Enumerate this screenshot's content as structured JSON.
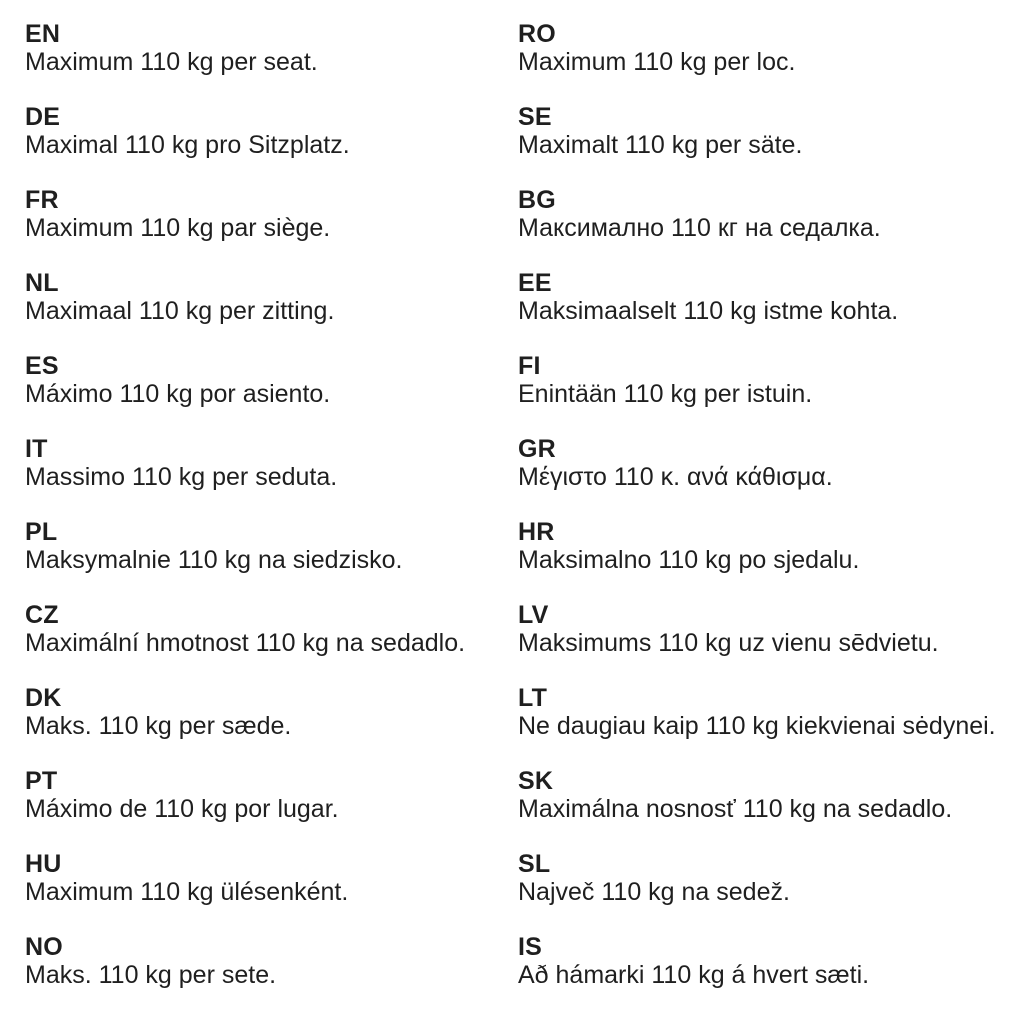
{
  "document": {
    "background_color": "#ffffff",
    "text_color": "#1f1f1f",
    "entries_left": [
      {
        "code": "EN",
        "text": "Maximum 110 kg per seat."
      },
      {
        "code": "DE",
        "text": "Maximal 110 kg pro Sitzplatz."
      },
      {
        "code": "FR",
        "text": "Maximum 110 kg par siège."
      },
      {
        "code": "NL",
        "text": "Maximaal 110 kg per zitting."
      },
      {
        "code": "ES",
        "text": "Máximo 110 kg por asiento."
      },
      {
        "code": "IT",
        "text": "Massimo 110 kg per seduta."
      },
      {
        "code": "PL",
        "text": "Maksymalnie 110 kg na siedzisko."
      },
      {
        "code": "CZ",
        "text": "Maximální hmotnost 110 kg na sedadlo."
      },
      {
        "code": "DK",
        "text": "Maks. 110 kg per sæde."
      },
      {
        "code": "PT",
        "text": "Máximo de 110 kg por lugar."
      },
      {
        "code": "HU",
        "text": "Maximum 110 kg ülésenként."
      },
      {
        "code": "NO",
        "text": "Maks. 110 kg per sete."
      }
    ],
    "entries_right": [
      {
        "code": "RO",
        "text": "Maximum 110 kg per loc."
      },
      {
        "code": "SE",
        "text": "Maximalt 110 kg per säte."
      },
      {
        "code": "BG",
        "text": "Максимално 110 кг на седалка."
      },
      {
        "code": "EE",
        "text": "Maksimaalselt 110 kg istme kohta."
      },
      {
        "code": "FI",
        "text": "Enintään 110 kg per istuin."
      },
      {
        "code": "GR",
        "text": "Μέγιστο 110 κ. ανά κάθισμα."
      },
      {
        "code": "HR",
        "text": "Maksimalno 110 kg po sjedalu."
      },
      {
        "code": "LV",
        "text": "Maksimums 110 kg uz vienu sēdvietu."
      },
      {
        "code": "LT",
        "text": "Ne daugiau kaip 110 kg kiekvienai sėdynei."
      },
      {
        "code": "SK",
        "text": "Maximálna nosnosť 110 kg na sedadlo."
      },
      {
        "code": "SL",
        "text": "Največ 110 kg na sedež."
      },
      {
        "code": "IS",
        "text": "Að hámarki 110 kg á hvert sæti."
      }
    ]
  }
}
